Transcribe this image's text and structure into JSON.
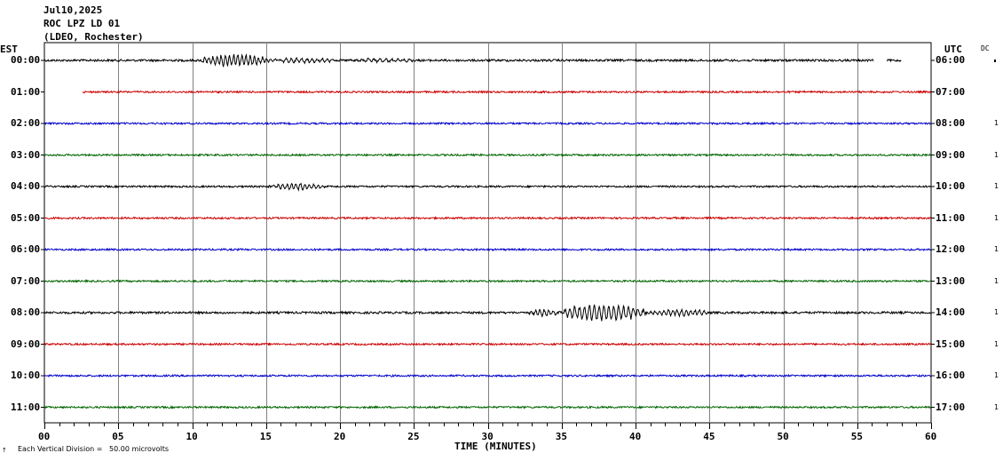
{
  "header": {
    "date": "Jul10,2025",
    "station": "ROC LPZ LD 01",
    "network": "(LDEO, Rochester)"
  },
  "labels": {
    "est": "EST",
    "utc": "UTC",
    "dc": "DC",
    "xlabel": "TIME (MINUTES)",
    "scale_note": "Each Vertical Division =   50.00 microvolts",
    "corner_mark": "↑"
  },
  "chart_data": {
    "type": "line",
    "xlim": [
      0,
      60
    ],
    "x_ticks": [
      "00",
      "05",
      "10",
      "15",
      "20",
      "25",
      "30",
      "35",
      "40",
      "45",
      "50",
      "55",
      "60"
    ],
    "rows": [
      {
        "est": "00:00",
        "utc": "06:00",
        "right": "",
        "color": "#000000",
        "start": 0,
        "end": 58,
        "gap": [
          56.1,
          57
        ],
        "noise": 1.2,
        "events": [
          {
            "x0": 10.6,
            "x1": 15.2,
            "amp": 6,
            "period": 0.28
          },
          {
            "x0": 15.2,
            "x1": 20,
            "amp": 2,
            "period": 0.35
          },
          {
            "x0": 20.5,
            "x1": 25,
            "amp": 1.5,
            "period": 0.4
          }
        ]
      },
      {
        "est": "01:00",
        "utc": "07:00",
        "right": "",
        "color": "#cc0000",
        "start": 2.6,
        "end": 60,
        "noise": 1.0,
        "events": []
      },
      {
        "est": "02:00",
        "utc": "08:00",
        "right": "1",
        "color": "#0000cc",
        "start": 0,
        "end": 60,
        "noise": 1.0,
        "events": []
      },
      {
        "est": "03:00",
        "utc": "09:00",
        "right": "1",
        "color": "#006600",
        "start": 0,
        "end": 60,
        "noise": 1.0,
        "events": []
      },
      {
        "est": "04:00",
        "utc": "10:00",
        "right": "1",
        "color": "#000000",
        "start": 0,
        "end": 60,
        "noise": 1.0,
        "events": [
          {
            "x0": 15.2,
            "x1": 19,
            "amp": 3,
            "period": 0.3
          }
        ]
      },
      {
        "est": "05:00",
        "utc": "11:00",
        "right": "1",
        "color": "#cc0000",
        "start": 0,
        "end": 60,
        "noise": 1.0,
        "events": []
      },
      {
        "est": "06:00",
        "utc": "12:00",
        "right": "1",
        "color": "#0000cc",
        "start": 0,
        "end": 60,
        "noise": 1.0,
        "events": []
      },
      {
        "est": "07:00",
        "utc": "13:00",
        "right": "1",
        "color": "#006600",
        "start": 0,
        "end": 60,
        "noise": 1.0,
        "events": []
      },
      {
        "est": "08:00",
        "utc": "14:00",
        "right": "1",
        "color": "#000000",
        "start": 0,
        "end": 60,
        "noise": 1.2,
        "events": [
          {
            "x0": 32.8,
            "x1": 34.8,
            "amp": 3,
            "period": 0.3
          },
          {
            "x0": 34.8,
            "x1": 40.8,
            "amp": 8,
            "period": 0.33
          },
          {
            "x0": 40.8,
            "x1": 45,
            "amp": 3,
            "period": 0.3
          }
        ]
      },
      {
        "est": "09:00",
        "utc": "15:00",
        "right": "1",
        "color": "#cc0000",
        "start": 0,
        "end": 60,
        "noise": 1.0,
        "events": []
      },
      {
        "est": "10:00",
        "utc": "16:00",
        "right": "1",
        "color": "#0000cc",
        "start": 0,
        "end": 60,
        "noise": 1.0,
        "events": []
      },
      {
        "est": "11:00",
        "utc": "17:00",
        "right": "1",
        "color": "#006600",
        "start": 0,
        "end": 60,
        "noise": 1.0,
        "events": []
      }
    ]
  }
}
